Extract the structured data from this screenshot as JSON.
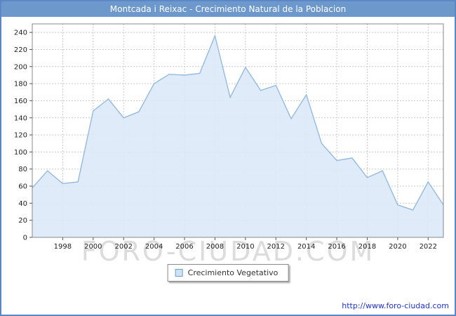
{
  "title": "Montcada i Reixac - Crecimiento Natural de la Poblacion",
  "watermark": "FORO-CIUDAD.COM",
  "legend": {
    "label": "Crecimiento Vegetativo"
  },
  "footer": {
    "url": "http://www.foro-ciudad.com"
  },
  "colors": {
    "border": "#5b87c5",
    "header_bg": "#6d98cc",
    "grid": "#c9c9c9",
    "axis": "#555555",
    "plot_border": "#8a8a8a",
    "area_fill": "#dce9f7",
    "line": "#94bbdf",
    "legend_marker_fill": "#cfe2f3",
    "legend_marker_border": "#6f9fd0",
    "watermark": "#dcdcdc",
    "url": "#2233cc"
  },
  "chart_data": {
    "type": "area",
    "title": "Montcada i Reixac - Crecimiento Natural de la Poblacion",
    "xlabel": "",
    "ylabel": "",
    "x": [
      1996,
      1997,
      1998,
      1999,
      2000,
      2001,
      2002,
      2003,
      2004,
      2005,
      2006,
      2007,
      2008,
      2009,
      2010,
      2011,
      2012,
      2013,
      2014,
      2015,
      2016,
      2017,
      2018,
      2019,
      2020,
      2021,
      2022,
      2023
    ],
    "series": [
      {
        "name": "Crecimiento Vegetativo",
        "values": [
          58,
          78,
          63,
          65,
          148,
          162,
          140,
          147,
          180,
          191,
          190,
          192,
          236,
          164,
          199,
          172,
          178,
          139,
          167,
          110,
          90,
          93,
          70,
          78,
          38,
          32,
          65,
          38
        ]
      }
    ],
    "ylim": [
      0,
      250
    ],
    "ytick_step": 20,
    "ytick_max": 240,
    "xticks": [
      1998,
      2000,
      2002,
      2004,
      2006,
      2008,
      2010,
      2012,
      2014,
      2016,
      2018,
      2020,
      2022
    ],
    "grid": true,
    "legend_position": "bottom"
  }
}
